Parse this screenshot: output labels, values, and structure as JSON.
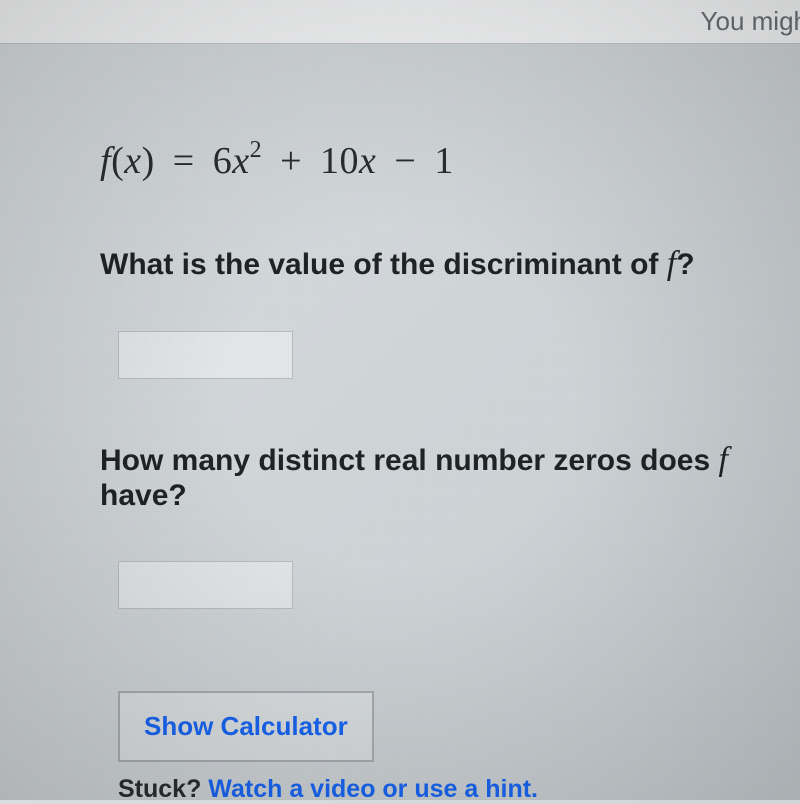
{
  "header": {
    "top_right_text": "You migh"
  },
  "equation": {
    "lhs_fn": "f",
    "lhs_var": "x",
    "eq": "=",
    "term1_coef": "6",
    "term1_var": "x",
    "term1_exp": "2",
    "op1": "+",
    "term2_coef": "10",
    "term2_var": "x",
    "op2": "−",
    "term3": "1"
  },
  "q1": {
    "pre": "What is the value of the discriminant of ",
    "var": "f",
    "post": "?"
  },
  "input1": {
    "value": ""
  },
  "q2": {
    "pre": "How many distinct real number zeros does ",
    "var": "f",
    "post": " have?"
  },
  "input2": {
    "value": ""
  },
  "calc_button": {
    "label": "Show Calculator"
  },
  "stuck": {
    "pre": "Stuck? ",
    "link": "Watch a video or use a hint."
  }
}
